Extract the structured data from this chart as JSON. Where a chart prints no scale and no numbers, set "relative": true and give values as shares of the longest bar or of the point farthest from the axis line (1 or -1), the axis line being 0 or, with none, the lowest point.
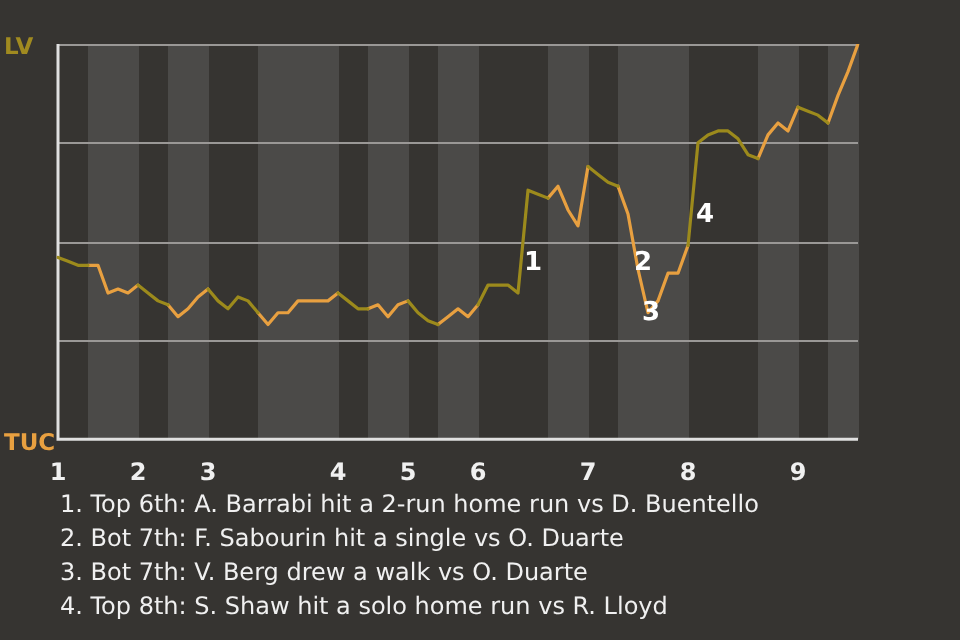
{
  "chart_data": {
    "type": "line",
    "marker": "none",
    "grid": "y",
    "relative": true,
    "categories": [
      "1",
      null,
      null,
      null,
      null,
      null,
      null,
      null,
      "2",
      null,
      null,
      null,
      null,
      null,
      null,
      "3",
      null,
      null,
      null,
      null,
      null,
      null,
      null,
      null,
      null,
      null,
      null,
      null,
      "4",
      null,
      null,
      null,
      null,
      null,
      null,
      "5",
      null,
      null,
      null,
      null,
      null,
      null,
      "6",
      null,
      null,
      null,
      null,
      null,
      null,
      null,
      null,
      null,
      null,
      "7",
      null,
      null,
      null,
      null,
      null,
      null,
      null,
      null,
      null,
      "8",
      null,
      null,
      null,
      null,
      null,
      null,
      null,
      null,
      null,
      null,
      "9",
      null,
      null,
      null,
      null,
      null,
      null
    ],
    "series": [
      {
        "color": "#9c8a1c",
        "values": [
          0.46,
          0.45,
          0.44,
          0.44,
          null,
          null,
          null,
          null,
          0.39,
          0.37,
          0.35,
          0.34,
          null,
          null,
          null,
          0.38,
          0.35,
          0.33,
          0.36,
          0.35,
          0.32,
          null,
          null,
          null,
          null,
          null,
          null,
          null,
          0.37,
          0.35,
          0.33,
          0.33,
          null,
          null,
          null,
          0.35,
          0.32,
          0.3,
          0.29,
          null,
          null,
          null,
          0.34,
          0.39,
          0.39,
          0.39,
          0.37,
          0.63,
          0.62,
          0.61,
          null,
          null,
          null,
          0.69,
          0.67,
          0.65,
          0.64,
          null,
          null,
          null,
          null,
          null,
          null,
          0.49,
          0.75,
          0.77,
          0.78,
          0.78,
          0.76,
          0.72,
          0.71,
          null,
          null,
          null,
          0.84,
          0.83,
          0.82,
          0.8,
          null,
          null,
          null
        ]
      },
      {
        "color": "#e8a040",
        "values": [
          null,
          null,
          null,
          0.44,
          0.44,
          0.37,
          0.38,
          0.37,
          0.39,
          null,
          null,
          0.34,
          0.31,
          0.33,
          0.36,
          0.38,
          null,
          null,
          null,
          null,
          0.32,
          0.29,
          0.32,
          0.32,
          0.35,
          0.35,
          0.35,
          0.35,
          0.37,
          null,
          null,
          0.33,
          0.34,
          0.31,
          0.34,
          0.35,
          null,
          null,
          0.29,
          0.31,
          0.33,
          0.31,
          0.34,
          null,
          null,
          null,
          null,
          null,
          null,
          0.61,
          0.64,
          0.58,
          0.54,
          0.69,
          null,
          null,
          0.64,
          0.57,
          0.43,
          0.32,
          0.35,
          0.42,
          0.42,
          0.49,
          null,
          null,
          null,
          null,
          null,
          null,
          0.71,
          0.77,
          0.8,
          0.78,
          0.84,
          null,
          null,
          0.8,
          0.87,
          0.93,
          1
        ]
      }
    ],
    "annotations": [
      "LV",
      "TUC",
      "1",
      "2",
      "3",
      "4",
      "1. Top 6th: A. Barrabi hit a 2-run home run vs D. Buentello",
      "2. Bot 7th: F. Sabourin hit a single vs O. Duarte",
      "3. Bot 7th: V. Berg drew a walk vs O. Duarte",
      "4. Top 8th: S. Shaw hit a solo home run vs R. Lloyd"
    ]
  }
}
